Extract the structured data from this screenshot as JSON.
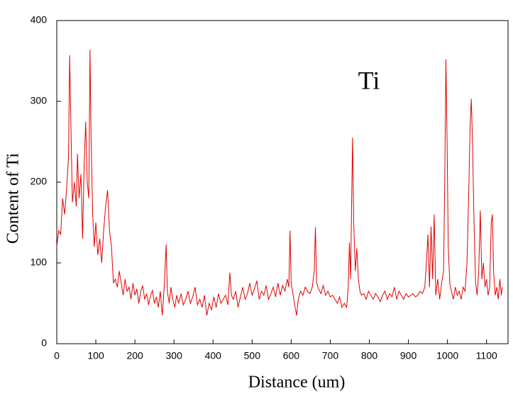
{
  "chart_data": {
    "type": "line",
    "annotation": "Ti",
    "xlabel": "Distance (um)",
    "ylabel": "Content of Ti",
    "xlim": [
      0,
      1155
    ],
    "ylim": [
      0,
      400
    ],
    "xticks": [
      0,
      100,
      200,
      300,
      400,
      500,
      600,
      700,
      800,
      900,
      1000,
      1100
    ],
    "yticks": [
      0,
      100,
      200,
      300,
      400
    ],
    "series": [
      {
        "color": "#e00000",
        "x": [
          0,
          5,
          10,
          15,
          20,
          25,
          30,
          33,
          37,
          40,
          45,
          50,
          53,
          57,
          62,
          66,
          70,
          74,
          78,
          82,
          85,
          88,
          92,
          96,
          100,
          105,
          110,
          115,
          120,
          125,
          130,
          135,
          140,
          145,
          150,
          155,
          160,
          165,
          170,
          175,
          180,
          185,
          190,
          195,
          200,
          205,
          210,
          215,
          220,
          225,
          230,
          235,
          240,
          245,
          250,
          255,
          260,
          265,
          270,
          275,
          280,
          283,
          288,
          292,
          297,
          302,
          307,
          312,
          318,
          324,
          330,
          336,
          342,
          348,
          354,
          360,
          366,
          372,
          378,
          384,
          390,
          396,
          402,
          408,
          414,
          420,
          426,
          432,
          438,
          443,
          447,
          452,
          458,
          464,
          470,
          476,
          482,
          488,
          494,
          500,
          506,
          512,
          518,
          524,
          530,
          536,
          542,
          548,
          554,
          560,
          566,
          572,
          578,
          584,
          590,
          594,
          597,
          600,
          605,
          610,
          614,
          618,
          624,
          630,
          636,
          642,
          648,
          654,
          659,
          662,
          665,
          670,
          676,
          682,
          688,
          694,
          700,
          706,
          712,
          718,
          724,
          730,
          736,
          742,
          746,
          749,
          752,
          757,
          760,
          764,
          768,
          772,
          776,
          780,
          786,
          792,
          798,
          804,
          810,
          816,
          822,
          828,
          834,
          840,
          846,
          852,
          858,
          864,
          870,
          876,
          882,
          888,
          894,
          900,
          906,
          912,
          918,
          924,
          930,
          936,
          942,
          946,
          950,
          954,
          958,
          962,
          966,
          970,
          975,
          980,
          985,
          990,
          993,
          996,
          999,
          1002,
          1006,
          1010,
          1015,
          1020,
          1025,
          1030,
          1035,
          1040,
          1045,
          1050,
          1055,
          1058,
          1061,
          1064,
          1068,
          1072,
          1076,
          1080,
          1084,
          1088,
          1092,
          1096,
          1100,
          1104,
          1108,
          1112,
          1115,
          1118,
          1122,
          1126,
          1130,
          1134,
          1138,
          1140
        ],
        "values": [
          120,
          140,
          135,
          180,
          160,
          190,
          230,
          357,
          250,
          175,
          200,
          170,
          235,
          180,
          210,
          130,
          220,
          275,
          200,
          180,
          364,
          250,
          160,
          120,
          150,
          110,
          130,
          100,
          140,
          170,
          190,
          140,
          120,
          75,
          80,
          70,
          90,
          75,
          60,
          80,
          65,
          70,
          55,
          75,
          60,
          68,
          50,
          65,
          72,
          55,
          62,
          48,
          60,
          66,
          50,
          58,
          45,
          65,
          35,
          70,
          123,
          65,
          50,
          70,
          55,
          45,
          60,
          50,
          62,
          48,
          55,
          65,
          50,
          58,
          70,
          48,
          55,
          45,
          60,
          35,
          50,
          42,
          58,
          45,
          62,
          50,
          55,
          60,
          48,
          88,
          60,
          55,
          65,
          45,
          58,
          70,
          55,
          62,
          75,
          60,
          68,
          78,
          55,
          65,
          60,
          72,
          55,
          62,
          70,
          58,
          75,
          60,
          72,
          65,
          80,
          70,
          140,
          75,
          60,
          45,
          35,
          55,
          65,
          60,
          70,
          65,
          62,
          70,
          90,
          144,
          75,
          68,
          62,
          72,
          60,
          65,
          58,
          60,
          55,
          50,
          58,
          45,
          50,
          45,
          70,
          125,
          80,
          255,
          150,
          90,
          118,
          80,
          65,
          60,
          62,
          55,
          65,
          60,
          55,
          62,
          58,
          52,
          60,
          65,
          55,
          62,
          58,
          70,
          55,
          65,
          60,
          55,
          62,
          58,
          60,
          62,
          58,
          60,
          65,
          62,
          70,
          100,
          135,
          70,
          145,
          80,
          160,
          60,
          80,
          55,
          75,
          90,
          200,
          352,
          250,
          120,
          75,
          65,
          55,
          70,
          60,
          65,
          55,
          70,
          65,
          100,
          200,
          270,
          303,
          250,
          150,
          75,
          60,
          90,
          165,
          80,
          100,
          70,
          80,
          60,
          70,
          150,
          160,
          90,
          60,
          70,
          55,
          80,
          60,
          70
        ]
      }
    ]
  }
}
